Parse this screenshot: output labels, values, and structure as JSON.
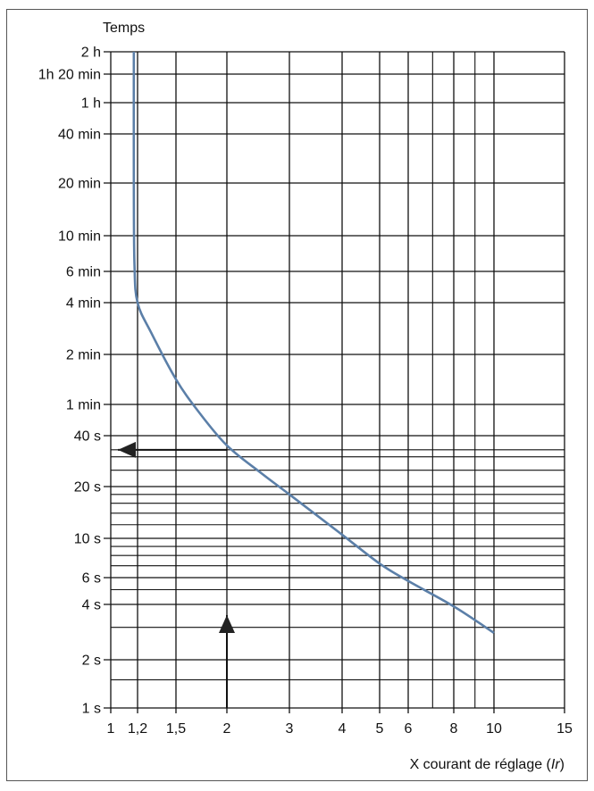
{
  "chart_data": {
    "type": "line",
    "title": "",
    "ylabel": "Temps",
    "xlabel": "X courant de réglage (Ir)",
    "xlabel_parts": [
      "X courant de réglage (",
      "Ir",
      ")"
    ],
    "x_scale": "log",
    "y_scale": "log",
    "xlim": [
      1,
      15
    ],
    "ylim_seconds": [
      1,
      7200
    ],
    "x_ticks": [
      {
        "value": 1,
        "label": "1"
      },
      {
        "value": 1.2,
        "label": "1,2"
      },
      {
        "value": 1.5,
        "label": "1,5"
      },
      {
        "value": 2,
        "label": "2"
      },
      {
        "value": 3,
        "label": "3"
      },
      {
        "value": 4,
        "label": "4"
      },
      {
        "value": 5,
        "label": "5"
      },
      {
        "value": 6,
        "label": "6"
      },
      {
        "value": 8,
        "label": "8"
      },
      {
        "value": 10,
        "label": "10"
      },
      {
        "value": 15,
        "label": "15"
      }
    ],
    "x_minor_grid": [
      7,
      9
    ],
    "y_ticks": [
      {
        "value": 7200,
        "label": "2 h"
      },
      {
        "value": 4800,
        "label": "1h 20 min"
      },
      {
        "value": 3600,
        "label": "1 h"
      },
      {
        "value": 2400,
        "label": "40 min"
      },
      {
        "value": 1200,
        "label": "20 min"
      },
      {
        "value": 600,
        "label": "10 min"
      },
      {
        "value": 360,
        "label": "6 min"
      },
      {
        "value": 240,
        "label": "4 min"
      },
      {
        "value": 120,
        "label": "2 min"
      },
      {
        "value": 60,
        "label": "1 min"
      },
      {
        "value": 40,
        "label": "40 s"
      },
      {
        "value": 20,
        "label": "20 s"
      },
      {
        "value": 10,
        "label": "10 s"
      },
      {
        "value": 6,
        "label": "6 s"
      },
      {
        "value": 4,
        "label": "4 s"
      },
      {
        "value": 2,
        "label": "2 s"
      },
      {
        "value": 1,
        "label": "1 s"
      }
    ],
    "y_minor_grid": [
      33,
      30,
      25,
      18,
      16,
      14,
      12,
      9,
      8,
      7,
      5,
      3,
      1.5
    ],
    "series": [
      {
        "name": "tripping-curve",
        "color": "#5b7fa8",
        "x": [
          1.17,
          1.17,
          1.175,
          1.2,
          1.3,
          1.5,
          1.7,
          2,
          2.5,
          3,
          4,
          5,
          6,
          8,
          10
        ],
        "y": [
          7200,
          1200,
          400,
          240,
          160,
          85,
          55,
          35,
          24,
          18,
          10.5,
          7.2,
          5.7,
          3.9,
          2.8
        ]
      }
    ],
    "annotations": [
      {
        "type": "arrow",
        "from": [
          2,
          1
        ],
        "to": [
          2,
          3.5
        ],
        "text": ""
      },
      {
        "type": "arrow",
        "from": [
          2,
          33
        ],
        "to": [
          1.05,
          33
        ],
        "text": ""
      }
    ],
    "grid": true,
    "legend": "none"
  }
}
